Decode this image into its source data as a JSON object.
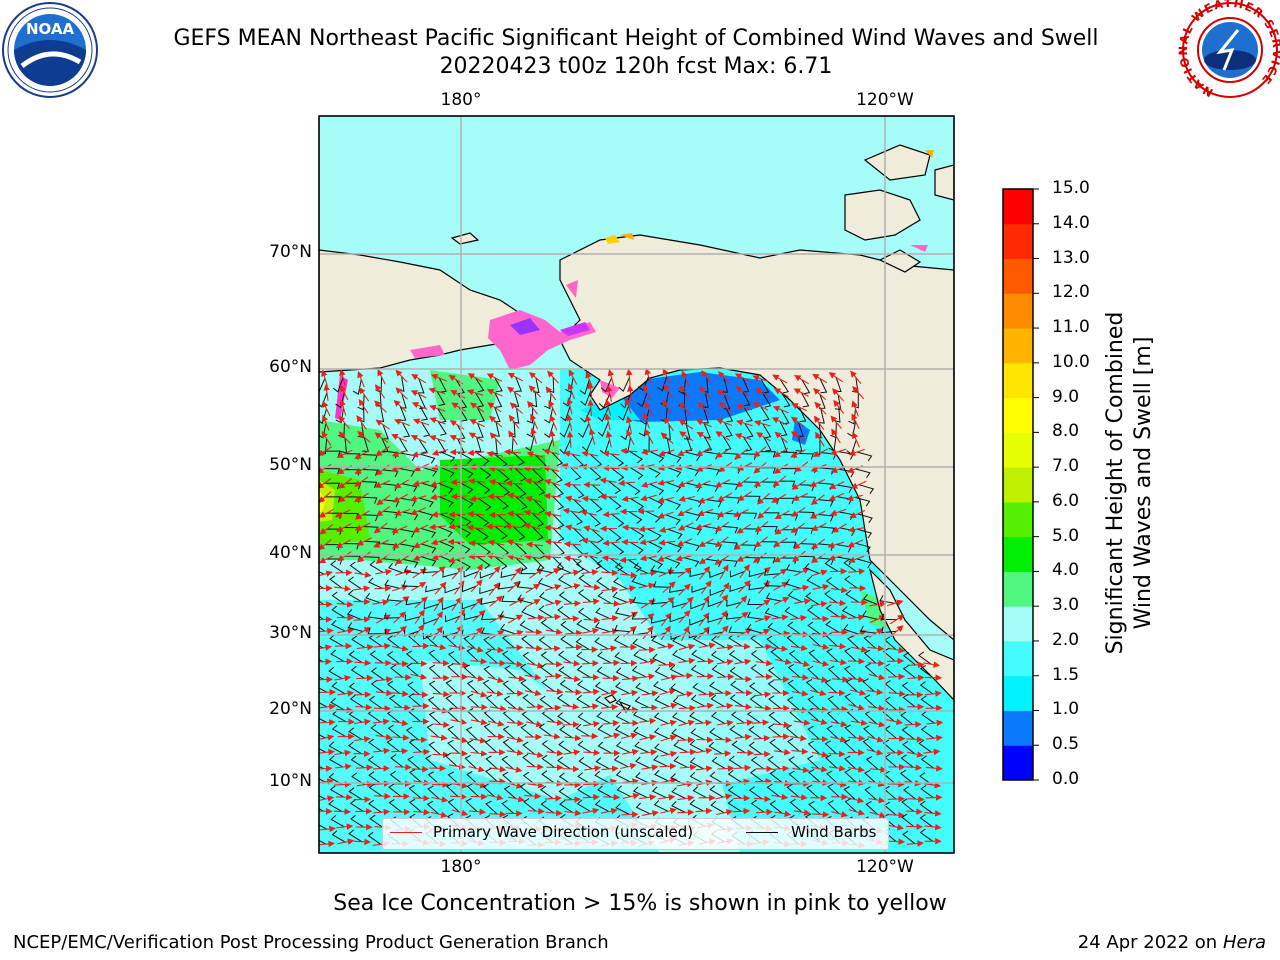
{
  "title": {
    "line1": "GEFS MEAN Northeast Pacific Significant Height of Combined Wind Waves and Swell",
    "line2": "20220423 t00z 120h fcst   Max: 6.71"
  },
  "map": {
    "lon_labels": [
      "180°",
      "120°W"
    ],
    "lat_labels": [
      "70°N",
      "60°N",
      "50°N",
      "40°N",
      "30°N",
      "20°N",
      "10°N"
    ],
    "colors": {
      "land": "#efecdb",
      "grid": "#b0b0b0",
      "wave_arrow": "#e8221a",
      "wind_barb": "#111111"
    },
    "legend": {
      "wave_label": "Primary Wave Direction (unscaled)",
      "wind_label": "Wind Barbs"
    }
  },
  "colorbar": {
    "label_line1": "Significant Height of Combined",
    "label_line2": "Wind Waves and Swell [m]",
    "ticks": [
      "0.0",
      "0.5",
      "1.0",
      "1.5",
      "2.0",
      "3.0",
      "4.0",
      "5.0",
      "6.0",
      "7.0",
      "8.0",
      "9.0",
      "10.0",
      "11.0",
      "12.0",
      "13.0",
      "14.0",
      "15.0"
    ],
    "colors": [
      "#0000ff",
      "#0a78ff",
      "#00f3ff",
      "#43fcfc",
      "#a6fdf7",
      "#4ff781",
      "#00ee00",
      "#54f000",
      "#c0f000",
      "#e6ff00",
      "#ffff00",
      "#ffe600",
      "#ffb400",
      "#ff8b00",
      "#ff5a00",
      "#ff2a00",
      "#ff0000"
    ]
  },
  "logos": {
    "noaa": "NOAA",
    "nws_ring": "NATIONAL WEATHER SERVICE"
  },
  "caption": "Sea Ice Concentration > 15% is shown in pink to yellow",
  "footer": {
    "left": "NCEP/EMC/Verification Post Processing Product Generation Branch",
    "right_date": "24 Apr 2022 on ",
    "right_host": "Hera"
  }
}
